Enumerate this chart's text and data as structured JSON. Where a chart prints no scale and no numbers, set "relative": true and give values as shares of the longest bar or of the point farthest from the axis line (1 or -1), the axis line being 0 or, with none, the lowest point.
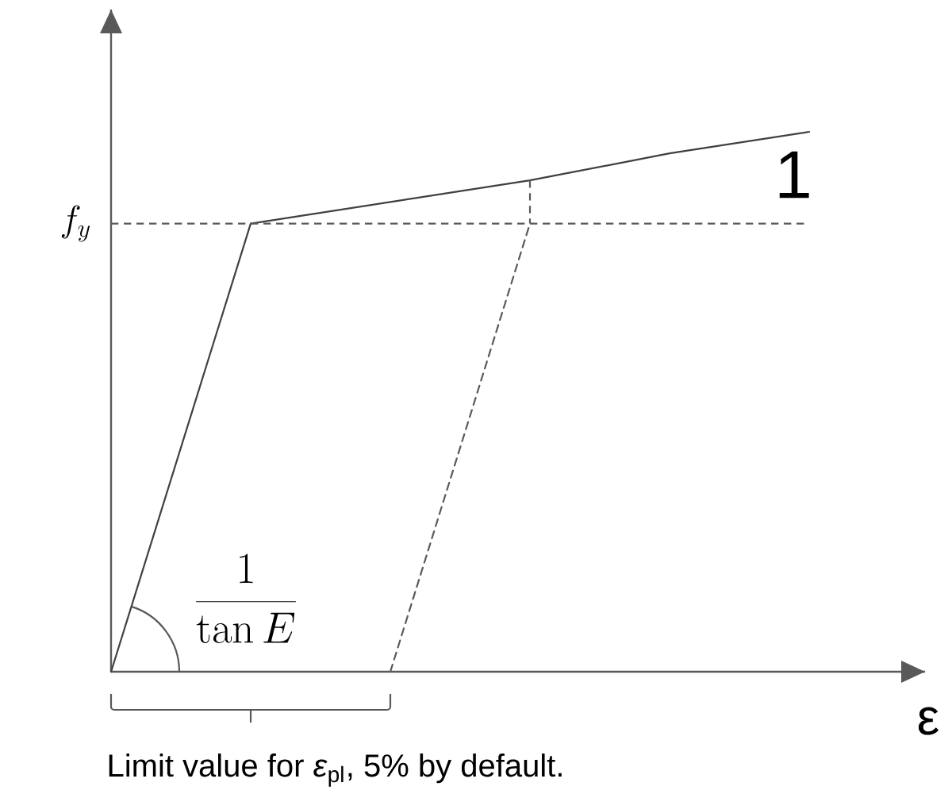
{
  "chart_data": {
    "type": "line",
    "relative": true,
    "xlabel": "ε",
    "marker": "none",
    "categories": [
      null,
      null,
      null,
      null,
      null,
      null
    ],
    "series": [
      {
        "values": [
          0,
          0.83,
          0.87,
          0.91,
          0.96,
          1
        ],
        "color": "#404040",
        "line_style": "solid"
      },
      {
        "values": [
          null,
          null,
          0,
          0.83,
          null,
          null
        ],
        "color": "#5a5a5a",
        "line_style": "dashed"
      }
    ],
    "ref_lines": [
      {
        "axis": "y",
        "value": 0.83,
        "label": "f_y",
        "color": "#5a5a5a",
        "line_style": "dashed"
      }
    ],
    "annotations": [
      "1",
      "\\frac{1}{\\tan E}",
      "Limit value for *ε*$_{pl}$, 5% by default."
    ]
  }
}
